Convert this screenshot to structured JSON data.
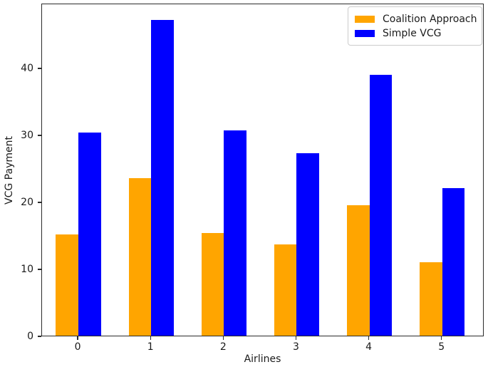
{
  "chart_data": {
    "type": "bar",
    "title": "",
    "xlabel": "Airlines",
    "ylabel": "VCG Payment",
    "categories": [
      "0",
      "1",
      "2",
      "3",
      "4",
      "5"
    ],
    "series": [
      {
        "name": "Coalition Approach",
        "color": "#FFA500",
        "values": [
          15.1,
          23.5,
          15.3,
          13.6,
          19.5,
          11.0
        ]
      },
      {
        "name": "Simple VCG",
        "color": "#0000FF",
        "values": [
          30.3,
          47.2,
          30.6,
          27.2,
          38.9,
          22.0
        ]
      }
    ],
    "ylim": [
      0,
      49.7
    ],
    "xlim": [
      -0.5,
      5.58
    ],
    "yticks": [
      0,
      10,
      20,
      30,
      40
    ],
    "legend_position": "upper right",
    "grid": false,
    "axis_color": "#2b2b2b",
    "legend_border_color": "#cccccc"
  }
}
